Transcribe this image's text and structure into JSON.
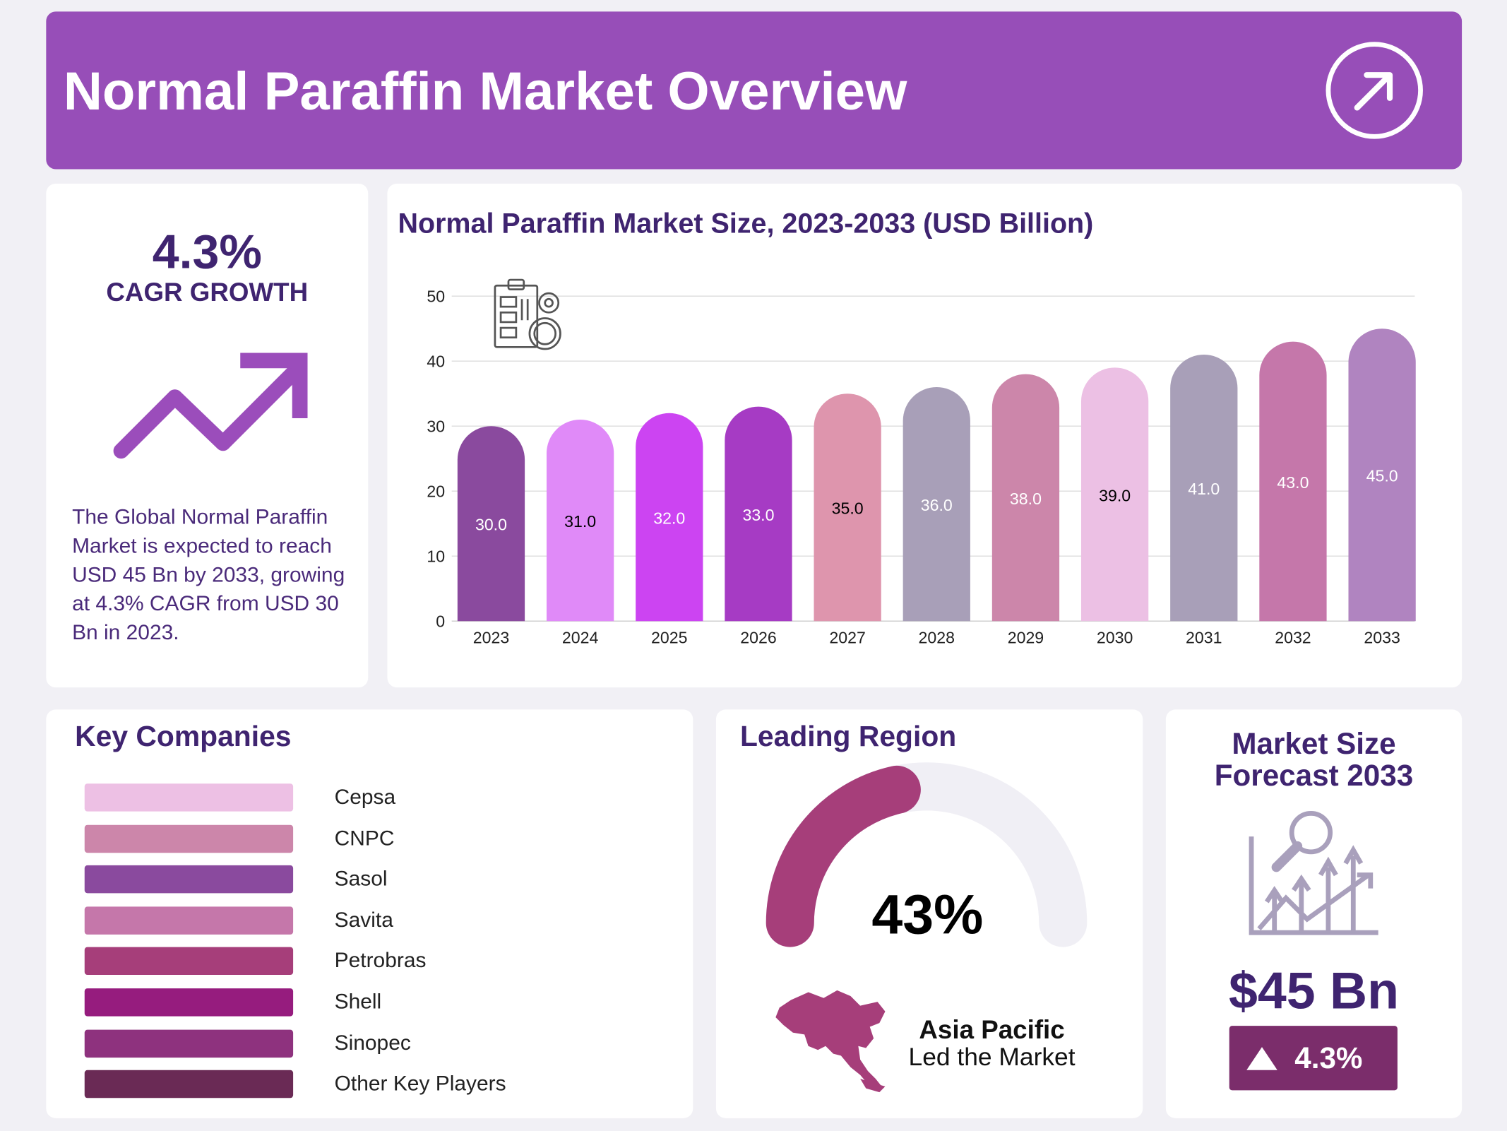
{
  "header": {
    "title": "Normal Paraffin Market Overview",
    "icon": "arrow-up-right-circle-icon"
  },
  "cagr": {
    "value": "4.3%",
    "label": "CAGR GROWTH",
    "icon": "trend-up-arrow-icon",
    "description": "The Global Normal Paraffin Market is expected to reach USD 45 Bn by 2033, growing at 4.3% CAGR from USD 30 Bn in 2023.",
    "color": "#9B4DBB"
  },
  "chart_data": {
    "type": "bar",
    "title": "Normal Paraffin Market Size, 2023-2033 (USD Billion)",
    "categories": [
      "2023",
      "2024",
      "2025",
      "2026",
      "2027",
      "2028",
      "2029",
      "2030",
      "2031",
      "2032",
      "2033"
    ],
    "values": [
      30.0,
      31.0,
      32.0,
      33.0,
      35.0,
      36.0,
      38.0,
      39.0,
      41.0,
      43.0,
      45.0
    ],
    "value_labels": [
      "30.0",
      "31.0",
      "32.0",
      "33.0",
      "35.0",
      "36.0",
      "38.0",
      "39.0",
      "41.0",
      "43.0",
      "45.0"
    ],
    "colors": [
      "#8A4A9E",
      "#E08AF8",
      "#CC44F2",
      "#A63BC4",
      "#DE95AD",
      "#A89FB8",
      "#CC86AA",
      "#ECC0E4",
      "#A89FB8",
      "#C577AA",
      "#B084C0"
    ],
    "label_colors": [
      "#ffffff",
      "#000000",
      "#ffffff",
      "#ffffff",
      "#000000",
      "#ffffff",
      "#ffffff",
      "#000000",
      "#ffffff",
      "#ffffff",
      "#ffffff"
    ],
    "yticks": [
      "0",
      "10",
      "20",
      "30",
      "40",
      "50"
    ],
    "ylim": [
      0,
      50
    ],
    "grid": true,
    "icon": "report-dashboard-icon"
  },
  "companies": {
    "title": "Key Companies",
    "items": [
      {
        "name": "Cepsa",
        "color": "#EDC0E4"
      },
      {
        "name": "CNPC",
        "color": "#CC86AA"
      },
      {
        "name": "Sasol",
        "color": "#8A4A9E"
      },
      {
        "name": "Savita",
        "color": "#C577AA"
      },
      {
        "name": "Petrobras",
        "color": "#A63E7A"
      },
      {
        "name": "Shell",
        "color": "#961C7E"
      },
      {
        "name": "Sinopec",
        "color": "#8E327E"
      },
      {
        "name": "Other Key Players",
        "color": "#6A2A55"
      }
    ]
  },
  "region": {
    "title": "Leading Region",
    "percent": "43%",
    "share": 43,
    "fill_color": "#A63E7A",
    "track_color": "#F0EFF5",
    "name": "Asia Pacific",
    "subtitle": "Led the Market",
    "icon": "asia-map-icon"
  },
  "forecast": {
    "title_line1": "Market Size",
    "title_line2": "Forecast 2033",
    "value": "$45 Bn",
    "growth": "4.3%",
    "icon": "growth-chart-magnifier-icon",
    "badge_color": "#7B2D6B"
  }
}
